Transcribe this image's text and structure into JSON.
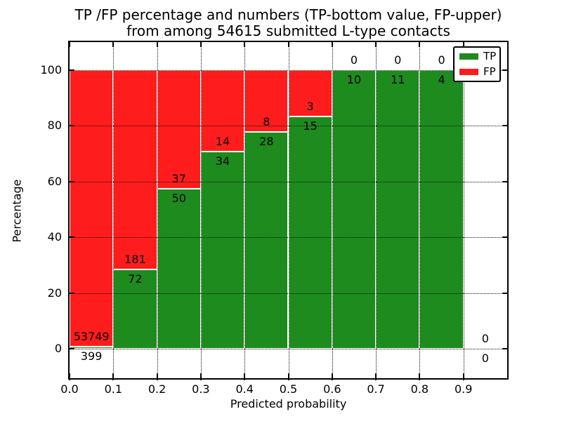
{
  "title": {
    "line1": "TP /FP percentage and numbers (TP-bottom value, FP-upper)",
    "line2": "from among 54615 submitted L-type contacts"
  },
  "legend": {
    "items": [
      {
        "label": "TP",
        "color": "#1e8b1e"
      },
      {
        "label": "FP",
        "color": "#ff1c1c"
      }
    ]
  },
  "chart_data": {
    "type": "bar",
    "stacked": true,
    "normalized_to_percent": true,
    "title": "TP /FP percentage and numbers (TP-bottom value, FP-upper) from among 54615 submitted L-type contacts",
    "xlabel": "Predicted probability",
    "ylabel": "Percentage",
    "total_submitted_contacts": 54615,
    "xlim": [
      0.0,
      1.0
    ],
    "ylim": [
      -10.5,
      110
    ],
    "bin_width": 0.1,
    "xtick_labels": [
      "0.0",
      "0.1",
      "0.2",
      "0.3",
      "0.4",
      "0.5",
      "0.6",
      "0.7",
      "0.8",
      "0.9"
    ],
    "ytick_values": [
      0,
      20,
      40,
      60,
      80,
      100
    ],
    "grid": "dotted black, horizontal and vertical, drawn above bars",
    "legend_position": "upper right",
    "colors": {
      "TP": "#1e8b1e",
      "FP": "#ff1c1c",
      "bar_edge": "#ffffff"
    },
    "bins": [
      {
        "range": [
          0.0,
          0.1
        ],
        "TP": 399,
        "FP": 53749
      },
      {
        "range": [
          0.1,
          0.2
        ],
        "TP": 72,
        "FP": 181
      },
      {
        "range": [
          0.2,
          0.3
        ],
        "TP": 50,
        "FP": 37
      },
      {
        "range": [
          0.3,
          0.4
        ],
        "TP": 34,
        "FP": 14
      },
      {
        "range": [
          0.4,
          0.5
        ],
        "TP": 28,
        "FP": 8
      },
      {
        "range": [
          0.5,
          0.6
        ],
        "TP": 15,
        "FP": 3
      },
      {
        "range": [
          0.6,
          0.7
        ],
        "TP": 10,
        "FP": 0
      },
      {
        "range": [
          0.7,
          0.8
        ],
        "TP": 11,
        "FP": 0
      },
      {
        "range": [
          0.8,
          0.9
        ],
        "TP": 4,
        "FP": 0
      },
      {
        "range": [
          0.9,
          1.0
        ],
        "TP": 0,
        "FP": 0
      }
    ]
  }
}
